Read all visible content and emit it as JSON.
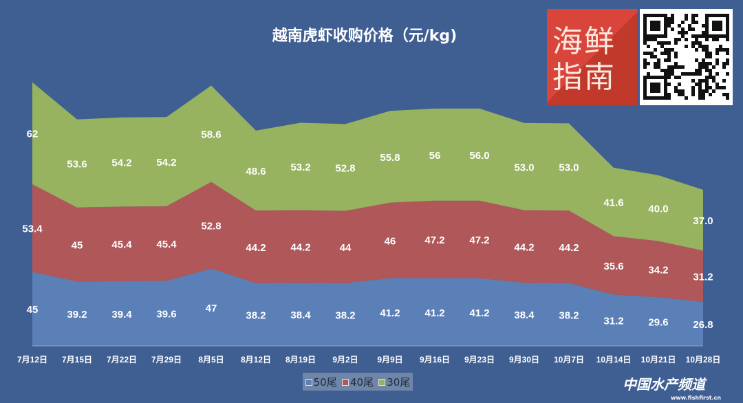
{
  "chart_data": {
    "type": "area",
    "stacked": true,
    "title": "越南虎虾收购价格（元/kg)",
    "xlabel": "",
    "ylabel": "",
    "categories": [
      "7月12日",
      "7月15日",
      "7月22日",
      "7月29日",
      "8月5日",
      "8月12日",
      "8月19日",
      "9月2日",
      "9月9日",
      "9月16日",
      "9月23日",
      "9月30日",
      "10月7日",
      "10月14日",
      "10月21日",
      "10月28日"
    ],
    "series": [
      {
        "name": "50尾",
        "color": "#5b80b8",
        "values": [
          45,
          39.2,
          39.4,
          39.6,
          47,
          38.2,
          38.4,
          38.2,
          41.2,
          41.2,
          41.2,
          38.4,
          38.2,
          31.2,
          29.6,
          26.8
        ],
        "labels": [
          "45",
          "39.2",
          "39.4",
          "39.6",
          "47",
          "38.2",
          "38.4",
          "38.2",
          "41.2",
          "41.2",
          "41.2",
          "38.4",
          "38.2",
          "31.2",
          "29.6",
          "26.8"
        ]
      },
      {
        "name": "40尾",
        "color": "#b0575a",
        "values": [
          53.4,
          45,
          45.4,
          45.4,
          52.8,
          44.2,
          44.2,
          44,
          46,
          47.2,
          47.2,
          44.2,
          44.2,
          35.6,
          34.2,
          31.2
        ],
        "labels": [
          "53.4",
          "45",
          "45.4",
          "45.4",
          "52.8",
          "44.2",
          "44.2",
          "44",
          "46",
          "47.2",
          "47.2",
          "44.2",
          "44.2",
          "35.6",
          "34.2",
          "31.2"
        ]
      },
      {
        "name": "30尾",
        "color": "#97b35f",
        "values": [
          62,
          53.6,
          54.2,
          54.2,
          58.6,
          48.6,
          53.2,
          52.8,
          55.8,
          56,
          56.0,
          53.0,
          53.0,
          41.6,
          40.0,
          37.0
        ],
        "labels": [
          "62",
          "53.6",
          "54.2",
          "54.2",
          "58.6",
          "48.6",
          "53.2",
          "52.8",
          "55.8",
          "56",
          "56.0",
          "53.0",
          "53.0",
          "41.6",
          "40.0",
          "37.0"
        ]
      }
    ],
    "legend_position": "bottom",
    "grid": false
  },
  "logo": {
    "text": "海鲜指南"
  },
  "watermark": {
    "name": "中国水产频道",
    "url": "www.fishfirst.cn"
  }
}
